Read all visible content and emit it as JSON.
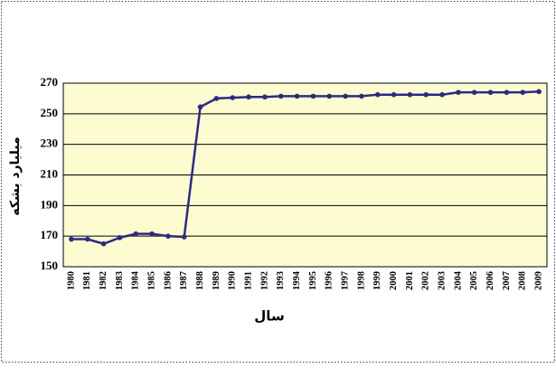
{
  "chart_data": {
    "type": "line",
    "x_label": "سال",
    "y_label": "میلیارد بشکه",
    "categories": [
      "1980",
      "1981",
      "1982",
      "1983",
      "1984",
      "1985",
      "1986",
      "1987",
      "1988",
      "1989",
      "1990",
      "1991",
      "1992",
      "1993",
      "1994",
      "1995",
      "1996",
      "1997",
      "1998",
      "1999",
      "2000",
      "2001",
      "2002",
      "2003",
      "2004",
      "2005",
      "2006",
      "2007",
      "2008",
      "2009"
    ],
    "series": [
      {
        "color": "#2b2b80",
        "values": [
          168,
          168,
          165,
          169,
          171.5,
          171.5,
          170,
          169.5,
          254.5,
          260,
          260.5,
          261,
          261,
          261.5,
          261.5,
          261.5,
          261.5,
          261.5,
          261.5,
          262.5,
          262.5,
          262.5,
          262.5,
          262.5,
          264,
          264,
          264,
          264,
          264,
          264.5
        ]
      }
    ],
    "ylim": [
      150,
      270
    ],
    "yticks": [
      150,
      170,
      190,
      210,
      230,
      250,
      270
    ],
    "grid": true
  }
}
